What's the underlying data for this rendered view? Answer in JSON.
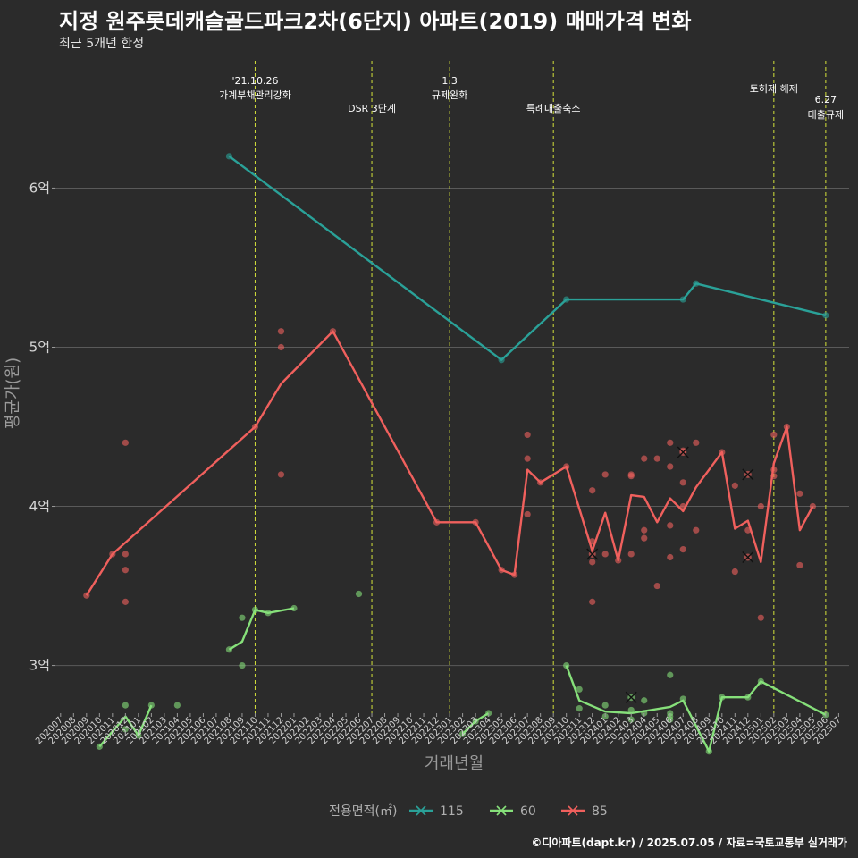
{
  "title": "지정 원주롯데캐슬골드파크2차(6단지) 아파트(2019) 매매가격 변화",
  "subtitle": "최근 5개년 한정",
  "caption": "©디아파트(dapt.kr) / 2025.07.05 / 자료=국토교통부 실거래가",
  "colors": {
    "s115": "#2aa198",
    "s60": "#86e07a",
    "s85": "#f0605d",
    "vline": "#d4e23a",
    "grid": "#5a5a5a"
  },
  "chart_data": {
    "type": "line",
    "xlabel": "거래년월",
    "ylabel": "평균가(원)",
    "ylim": [
      2.7,
      6.8
    ],
    "y_ticks": [
      3,
      4,
      5,
      6
    ],
    "y_tick_labels": [
      "3억",
      "4억",
      "5억",
      "6억"
    ],
    "x_ticks": [
      "202007",
      "202008",
      "202009",
      "202010",
      "202011",
      "202012",
      "202101",
      "202102",
      "202103",
      "202104",
      "202105",
      "202106",
      "202107",
      "202108",
      "202109",
      "202110",
      "202111",
      "202112",
      "202201",
      "202202",
      "202203",
      "202204",
      "202205",
      "202206",
      "202207",
      "202208",
      "202209",
      "202210",
      "202211",
      "202212",
      "202301",
      "202302",
      "202303",
      "202304",
      "202305",
      "202306",
      "202307",
      "202308",
      "202309",
      "202310",
      "202311",
      "202312",
      "202401",
      "202402",
      "202403",
      "202404",
      "202405",
      "202406",
      "202407",
      "202408",
      "202409",
      "202410",
      "202411",
      "202412",
      "202501",
      "202502",
      "202503",
      "202504",
      "202505",
      "202506",
      "202507"
    ],
    "legend_title": "전용면적(㎡)",
    "legend_position": "bottom",
    "series": [
      {
        "name": "115",
        "color": "#2aa198",
        "line": [
          [
            "202108",
            6.2
          ],
          [
            "202305",
            4.92
          ],
          [
            "202310",
            5.3
          ],
          [
            "202407",
            5.3
          ],
          [
            "202408",
            5.4
          ],
          [
            "202506",
            5.2
          ]
        ],
        "points": [
          [
            "202108",
            6.2
          ],
          [
            "202305",
            4.92
          ],
          [
            "202310",
            5.3
          ],
          [
            "202407",
            5.3
          ],
          [
            "202408",
            5.4
          ],
          [
            "202506",
            5.2
          ]
        ],
        "cancelled": []
      },
      {
        "name": "60",
        "color": "#86e07a",
        "line": [
          [
            "202010",
            2.49
          ],
          [
            "202012",
            2.68
          ],
          [
            "202101",
            2.56
          ],
          [
            "202102",
            2.75
          ],
          [
            "202108",
            3.1
          ],
          [
            "202109",
            3.15
          ],
          [
            "202110",
            3.35
          ],
          [
            "202111",
            3.33
          ],
          [
            "202201",
            3.36
          ],
          [
            "202302",
            2.57
          ],
          [
            "202303",
            2.65
          ],
          [
            "202304",
            2.7
          ],
          [
            "202310",
            3.0
          ],
          [
            "202311",
            2.78
          ],
          [
            "202401",
            2.71
          ],
          [
            "202403",
            2.7
          ],
          [
            "202406",
            2.74
          ],
          [
            "202407",
            2.78
          ],
          [
            "202409",
            2.46
          ],
          [
            "202410",
            2.8
          ],
          [
            "202412",
            2.8
          ],
          [
            "202501",
            2.9
          ],
          [
            "202506",
            2.69
          ]
        ],
        "breaks_after": [
          3,
          8,
          11
        ],
        "points": [
          [
            "202010",
            2.49
          ],
          [
            "202012",
            2.75
          ],
          [
            "202012",
            2.6
          ],
          [
            "202101",
            2.56
          ],
          [
            "202102",
            2.75
          ],
          [
            "202104",
            2.75
          ],
          [
            "202108",
            3.1
          ],
          [
            "202109",
            3.3
          ],
          [
            "202109",
            3.0
          ],
          [
            "202110",
            3.35
          ],
          [
            "202111",
            3.33
          ],
          [
            "202201",
            3.36
          ],
          [
            "202206",
            3.45
          ],
          [
            "202302",
            2.57
          ],
          [
            "202303",
            2.65
          ],
          [
            "202304",
            2.7
          ],
          [
            "202310",
            3.0
          ],
          [
            "202311",
            2.85
          ],
          [
            "202311",
            2.73
          ],
          [
            "202401",
            2.75
          ],
          [
            "202401",
            2.68
          ],
          [
            "202403",
            2.72
          ],
          [
            "202403",
            2.66
          ],
          [
            "202404",
            2.78
          ],
          [
            "202404",
            2.7
          ],
          [
            "202406",
            2.94
          ],
          [
            "202406",
            2.7
          ],
          [
            "202406",
            2.68
          ],
          [
            "202406",
            2.66
          ],
          [
            "202407",
            2.79
          ],
          [
            "202409",
            2.46
          ],
          [
            "202410",
            2.8
          ],
          [
            "202412",
            2.8
          ],
          [
            "202501",
            2.9
          ],
          [
            "202506",
            2.69
          ]
        ],
        "cancelled": [
          [
            "202403",
            2.8
          ]
        ]
      },
      {
        "name": "85",
        "color": "#f0605d",
        "line": [
          [
            "202009",
            3.44
          ],
          [
            "202011",
            3.7
          ],
          [
            "202110",
            4.5
          ],
          [
            "202112",
            4.77
          ],
          [
            "202204",
            5.1
          ],
          [
            "202212",
            3.9
          ],
          [
            "202303",
            3.9
          ],
          [
            "202305",
            3.6
          ],
          [
            "202306",
            3.57
          ],
          [
            "202307",
            4.23
          ],
          [
            "202308",
            4.15
          ],
          [
            "202310",
            4.25
          ],
          [
            "202312",
            3.72
          ],
          [
            "202401",
            3.96
          ],
          [
            "202402",
            3.66
          ],
          [
            "202403",
            4.07
          ],
          [
            "202404",
            4.06
          ],
          [
            "202405",
            3.9
          ],
          [
            "202406",
            4.05
          ],
          [
            "202407",
            3.97
          ],
          [
            "202408",
            4.12
          ],
          [
            "202410",
            4.34
          ],
          [
            "202411",
            3.86
          ],
          [
            "202412",
            3.91
          ],
          [
            "202501",
            3.65
          ],
          [
            "202502",
            4.27
          ],
          [
            "202503",
            4.5
          ],
          [
            "202504",
            3.85
          ],
          [
            "202505",
            4.0
          ]
        ],
        "points": [
          [
            "202009",
            3.44
          ],
          [
            "202011",
            3.7
          ],
          [
            "202012",
            4.4
          ],
          [
            "202012",
            3.7
          ],
          [
            "202012",
            3.6
          ],
          [
            "202012",
            3.4
          ],
          [
            "202110",
            4.5
          ],
          [
            "202112",
            5.1
          ],
          [
            "202112",
            5.0
          ],
          [
            "202112",
            4.2
          ],
          [
            "202204",
            5.1
          ],
          [
            "202212",
            3.9
          ],
          [
            "202303",
            3.9
          ],
          [
            "202305",
            3.6
          ],
          [
            "202306",
            3.57
          ],
          [
            "202307",
            4.45
          ],
          [
            "202307",
            4.3
          ],
          [
            "202307",
            3.95
          ],
          [
            "202308",
            4.15
          ],
          [
            "202310",
            4.25
          ],
          [
            "202312",
            4.1
          ],
          [
            "202312",
            3.78
          ],
          [
            "202312",
            3.65
          ],
          [
            "202312",
            3.4
          ],
          [
            "202401",
            4.2
          ],
          [
            "202401",
            3.7
          ],
          [
            "202402",
            3.66
          ],
          [
            "202403",
            4.2
          ],
          [
            "202403",
            4.19
          ],
          [
            "202403",
            3.7
          ],
          [
            "202404",
            4.3
          ],
          [
            "202404",
            3.85
          ],
          [
            "202404",
            3.8
          ],
          [
            "202405",
            4.3
          ],
          [
            "202405",
            3.5
          ],
          [
            "202406",
            4.4
          ],
          [
            "202406",
            4.25
          ],
          [
            "202406",
            3.88
          ],
          [
            "202406",
            3.68
          ],
          [
            "202407",
            4.35
          ],
          [
            "202407",
            4.15
          ],
          [
            "202407",
            4.0
          ],
          [
            "202407",
            3.73
          ],
          [
            "202408",
            4.4
          ],
          [
            "202408",
            3.85
          ],
          [
            "202410",
            4.34
          ],
          [
            "202411",
            4.13
          ],
          [
            "202411",
            3.59
          ],
          [
            "202412",
            3.85
          ],
          [
            "202501",
            4.0
          ],
          [
            "202501",
            3.3
          ],
          [
            "202502",
            4.45
          ],
          [
            "202502",
            4.23
          ],
          [
            "202502",
            4.19
          ],
          [
            "202503",
            4.5
          ],
          [
            "202504",
            4.08
          ],
          [
            "202504",
            3.63
          ],
          [
            "202505",
            4.0
          ]
        ],
        "cancelled": [
          [
            "202312",
            3.7
          ],
          [
            "202407",
            4.34
          ],
          [
            "202412",
            4.2
          ],
          [
            "202412",
            3.68
          ]
        ]
      }
    ],
    "events": [
      {
        "month": "202110",
        "lines": [
          "'21.10.26",
          "가계부채관리강화"
        ],
        "row": "top"
      },
      {
        "month": "202207",
        "lines": [
          "DSR 3단계"
        ],
        "row": "low"
      },
      {
        "month": "202301",
        "lines": [
          "1.3",
          "규제완화"
        ],
        "row": "top"
      },
      {
        "month": "202309",
        "lines": [
          "특례대출축소"
        ],
        "row": "low"
      },
      {
        "month": "202502",
        "lines": [
          "토허제 해제"
        ],
        "row": "mid"
      },
      {
        "month": "202506",
        "lines": [
          "6.27",
          "대출규제"
        ],
        "row": "low2"
      }
    ]
  }
}
